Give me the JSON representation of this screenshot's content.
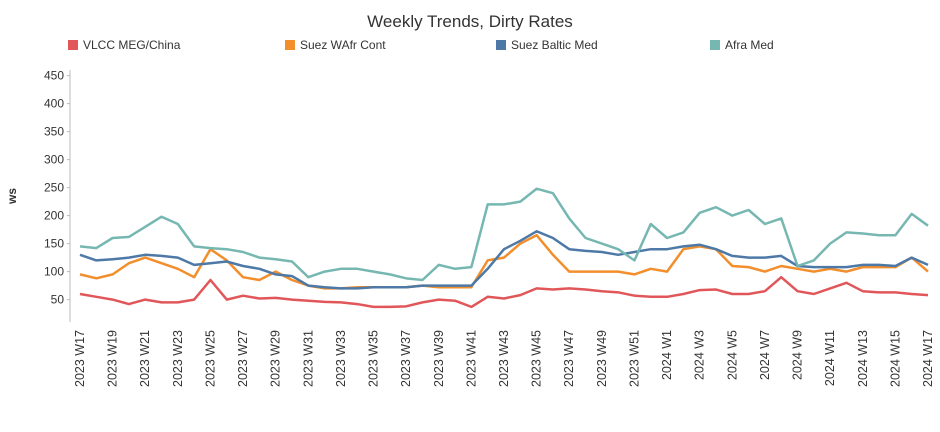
{
  "chart_data": {
    "type": "line",
    "title": "Weekly Trends, Dirty Rates",
    "y_label": "ws",
    "categories": [
      "2023 W17",
      null,
      "2023 W19",
      null,
      "2023 W21",
      null,
      "2023 W23",
      null,
      "2023 W25",
      null,
      "2023 W27",
      null,
      "2023 W29",
      null,
      "2023 W31",
      null,
      "2023 W33",
      null,
      "2023 W35",
      null,
      "2023 W37",
      null,
      "2023 W39",
      null,
      "2023 W41",
      null,
      "2023 W43",
      null,
      "2023 W45",
      null,
      "2023 W47",
      null,
      "2023 W49",
      null,
      "2023 W51",
      null,
      "2024 W1",
      null,
      "2024 W3",
      null,
      "2024 W5",
      null,
      "2024 W7",
      null,
      "2024 W9",
      null,
      "2024 W11",
      null,
      "2024 W13",
      null,
      "2024 W15",
      null,
      "2024 W17"
    ],
    "series": [
      {
        "name": "VLCC MEG/China",
        "color": "#e15759",
        "values": [
          60,
          55,
          50,
          42,
          50,
          45,
          45,
          50,
          85,
          50,
          57,
          52,
          53,
          50,
          48,
          46,
          45,
          42,
          37,
          37,
          38,
          45,
          50,
          48,
          37,
          55,
          52,
          58,
          70,
          68,
          70,
          68,
          65,
          63,
          57,
          55,
          55,
          60,
          67,
          68,
          60,
          60,
          65,
          90,
          65,
          60,
          70,
          80,
          65,
          63,
          63,
          60,
          58
        ]
      },
      {
        "name": "Suez WAfr Cont",
        "color": "#f28e2b",
        "values": [
          95,
          88,
          95,
          115,
          125,
          115,
          105,
          90,
          140,
          120,
          90,
          85,
          100,
          85,
          75,
          70,
          70,
          72,
          72,
          72,
          72,
          75,
          72,
          72,
          72,
          120,
          125,
          150,
          165,
          130,
          100,
          100,
          100,
          100,
          95,
          105,
          100,
          140,
          145,
          140,
          110,
          108,
          100,
          110,
          105,
          100,
          105,
          100,
          108,
          108,
          108,
          125,
          100
        ]
      },
      {
        "name": "Suez Baltic Med",
        "color": "#4e79a7",
        "values": [
          130,
          120,
          122,
          125,
          130,
          128,
          125,
          112,
          115,
          118,
          110,
          105,
          95,
          92,
          75,
          72,
          70,
          70,
          72,
          72,
          72,
          75,
          75,
          75,
          75,
          105,
          140,
          155,
          172,
          160,
          140,
          137,
          135,
          130,
          135,
          140,
          140,
          145,
          148,
          140,
          128,
          125,
          125,
          128,
          110,
          108,
          108,
          108,
          112,
          112,
          110,
          125,
          112
        ]
      },
      {
        "name": "Afra Med",
        "color": "#76b7b2",
        "values": [
          145,
          142,
          160,
          162,
          180,
          198,
          185,
          145,
          142,
          140,
          135,
          125,
          122,
          118,
          90,
          100,
          105,
          105,
          100,
          95,
          88,
          85,
          112,
          105,
          108,
          220,
          220,
          225,
          248,
          240,
          195,
          160,
          150,
          140,
          120,
          185,
          160,
          170,
          205,
          215,
          200,
          210,
          185,
          195,
          110,
          120,
          150,
          170,
          168,
          165,
          165,
          203,
          182
        ]
      }
    ],
    "ylim": [
      10,
      460
    ],
    "yticks": [
      50,
      100,
      150,
      200,
      250,
      300,
      350,
      400,
      450
    ],
    "grid": false
  }
}
